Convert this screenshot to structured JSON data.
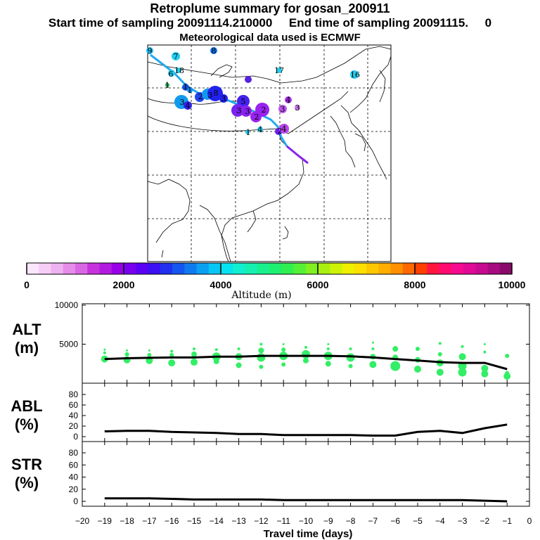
{
  "titles": {
    "line1": "Retroplume summary for gosan_200911",
    "line2": "Start time of sampling 20091114.210000     End time of sampling 20091115.     0",
    "line3": "Meteorological data used is ECMWF"
  },
  "colors": {
    "green_dots": "#33ee66",
    "line": "#000000",
    "traj_light": "#22aaee",
    "traj_dark": "#1122cc",
    "traj_purple": "#8822ee"
  },
  "map_labels": [
    "9",
    "7",
    "8",
    "6",
    "18",
    "8",
    "17",
    "16",
    "4",
    "3",
    "3",
    "1",
    "4",
    "2",
    "4",
    "3",
    "3",
    "4",
    "3",
    "5",
    "3",
    "2",
    "2",
    "3",
    "1",
    "1",
    "1",
    "2"
  ],
  "colorbar": {
    "label": "Altitude  (m)",
    "ticks": [
      "0",
      "2000",
      "4000",
      "6000",
      "8000",
      "10000"
    ],
    "colors": [
      "#fbe6fb",
      "#f6cdf6",
      "#eeb2f0",
      "#e68ce9",
      "#d966e3",
      "#c633dd",
      "#b31ae0",
      "#9900e8",
      "#7a00f0",
      "#5a00f5",
      "#3b0ff2",
      "#2030ee",
      "#1555f0",
      "#0f7af0",
      "#0aa0f2",
      "#05c6f5",
      "#05e3f0",
      "#10efd0",
      "#15f0b0",
      "#18f090",
      "#1ef070",
      "#30f050",
      "#55f035",
      "#80f020",
      "#a8f010",
      "#cdf205",
      "#eef000",
      "#fde000",
      "#fec800",
      "#ffae00",
      "#ff9000",
      "#ff6a00",
      "#ff3f00",
      "#ff1540",
      "#ff0a70",
      "#f50a90",
      "#e00a95",
      "#c80a90",
      "#a80a80",
      "#880a6a"
    ]
  },
  "chart_data": [
    {
      "type": "scatter+line",
      "name": "ALT",
      "label_line1": "ALT",
      "label_line2": "(m)",
      "ylim": [
        0,
        10000
      ],
      "yticks": [
        "5000",
        "10000"
      ],
      "x": [
        -19,
        -18,
        -17,
        -16,
        -15,
        -14,
        -13,
        -12,
        -11,
        -10,
        -9,
        -8,
        -7,
        -6,
        -5,
        -4,
        -3,
        -2,
        -1
      ],
      "line": [
        3100,
        3200,
        3250,
        3300,
        3300,
        3400,
        3400,
        3500,
        3500,
        3500,
        3500,
        3450,
        3300,
        3100,
        2900,
        2700,
        2600,
        2600,
        1800
      ],
      "dots": [
        [
          -19,
          3100,
          5
        ],
        [
          -19,
          3900,
          2
        ],
        [
          -19,
          4300,
          1.5
        ],
        [
          -18,
          3000,
          5
        ],
        [
          -18,
          3700,
          3
        ],
        [
          -18,
          4200,
          1.5
        ],
        [
          -17,
          2900,
          5
        ],
        [
          -17,
          3600,
          3
        ],
        [
          -17,
          4200,
          1.5
        ],
        [
          -16,
          2600,
          5
        ],
        [
          -16,
          3600,
          3
        ],
        [
          -16,
          4100,
          2
        ],
        [
          -15,
          2700,
          5
        ],
        [
          -15,
          3700,
          4
        ],
        [
          -15,
          4400,
          2
        ],
        [
          -14,
          2800,
          4
        ],
        [
          -14,
          3400,
          6
        ],
        [
          -14,
          4300,
          2
        ],
        [
          -13,
          2300,
          4
        ],
        [
          -13,
          3400,
          5
        ],
        [
          -13,
          4400,
          2
        ],
        [
          -12,
          2100,
          3
        ],
        [
          -12,
          3300,
          6
        ],
        [
          -12,
          4200,
          4
        ],
        [
          -12,
          5000,
          2
        ],
        [
          -11,
          2400,
          3
        ],
        [
          -11,
          3500,
          6
        ],
        [
          -11,
          4300,
          3
        ],
        [
          -11,
          5000,
          1.5
        ],
        [
          -10,
          2900,
          4
        ],
        [
          -10,
          3700,
          6
        ],
        [
          -10,
          4600,
          2
        ],
        [
          -9,
          2500,
          4
        ],
        [
          -9,
          3500,
          6
        ],
        [
          -9,
          4400,
          2
        ],
        [
          -9,
          5000,
          1.5
        ],
        [
          -8,
          2200,
          3
        ],
        [
          -8,
          3300,
          6
        ],
        [
          -8,
          4400,
          2
        ],
        [
          -7,
          2400,
          5
        ],
        [
          -7,
          3400,
          4
        ],
        [
          -7,
          4400,
          2
        ],
        [
          -7,
          5200,
          1.5
        ],
        [
          -6,
          2200,
          7
        ],
        [
          -6,
          3300,
          4
        ],
        [
          -6,
          4400,
          4
        ],
        [
          -5,
          1800,
          5
        ],
        [
          -5,
          3000,
          4
        ],
        [
          -5,
          4400,
          3
        ],
        [
          -4,
          1400,
          5
        ],
        [
          -4,
          2600,
          5
        ],
        [
          -4,
          3700,
          3
        ],
        [
          -4,
          5100,
          2
        ],
        [
          -3,
          1400,
          6
        ],
        [
          -3,
          2200,
          6
        ],
        [
          -3,
          3400,
          5
        ],
        [
          -3,
          4700,
          2
        ],
        [
          -2,
          1200,
          5
        ],
        [
          -2,
          1900,
          5
        ],
        [
          -2,
          4000,
          2
        ],
        [
          -2,
          5000,
          1.5
        ],
        [
          -1,
          900,
          5
        ],
        [
          -1,
          1300,
          3
        ],
        [
          -1,
          3500,
          3
        ]
      ]
    },
    {
      "type": "line",
      "name": "ABL",
      "label_line1": "ABL",
      "label_line2": "(%)",
      "ylim": [
        0,
        100
      ],
      "yticks": [
        "0",
        "20",
        "40",
        "60",
        "80"
      ],
      "x": [
        -19,
        -18,
        -17,
        -16,
        -15,
        -14,
        -13,
        -12,
        -11,
        -10,
        -9,
        -8,
        -7,
        -6,
        -5,
        -4,
        -3,
        -2,
        -1
      ],
      "values": [
        10,
        11,
        11,
        9,
        8,
        7,
        5,
        5,
        3,
        3,
        3,
        3,
        2,
        2,
        9,
        11,
        7,
        16,
        23
      ]
    },
    {
      "type": "line",
      "name": "STR",
      "label_line1": "STR",
      "label_line2": "(%)",
      "ylim": [
        0,
        100
      ],
      "yticks": [
        "0",
        "20",
        "40",
        "60",
        "80"
      ],
      "x": [
        -19,
        -18,
        -17,
        -16,
        -15,
        -14,
        -13,
        -12,
        -11,
        -10,
        -9,
        -8,
        -7,
        -6,
        -5,
        -4,
        -3,
        -2,
        -1
      ],
      "values": [
        5,
        5,
        5,
        4,
        3,
        3,
        3,
        3,
        2,
        2,
        2,
        2,
        2,
        2,
        2,
        2,
        2,
        1,
        0
      ]
    }
  ],
  "x_axis": {
    "label": "Travel time (days)",
    "ticks": [
      "−20",
      "−19",
      "−18",
      "−17",
      "−16",
      "−15",
      "−14",
      "−13",
      "−12",
      "−11",
      "−10",
      "−9",
      "−8",
      "−7",
      "−6",
      "−5",
      "−4",
      "−3",
      "−2",
      "−1",
      "0"
    ]
  }
}
